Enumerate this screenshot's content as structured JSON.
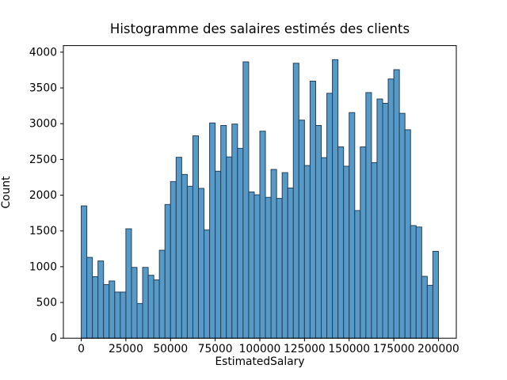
{
  "figure": {
    "background": "#ffffff"
  },
  "chart_data": {
    "type": "bar",
    "subtype": "histogram",
    "title": "Histogramme des salaires estimés des clients",
    "xlabel": "EstimatedSalary",
    "ylabel": "Count",
    "bin_start": 0,
    "bin_width": 3125,
    "bin_range": [
      0,
      200000
    ],
    "n_bins": 64,
    "values": [
      1850,
      1130,
      860,
      1080,
      750,
      800,
      645,
      645,
      1530,
      990,
      485,
      990,
      880,
      815,
      1230,
      1870,
      2190,
      2530,
      2290,
      2125,
      2830,
      2095,
      1515,
      3010,
      2335,
      2975,
      2535,
      2995,
      2655,
      3865,
      2045,
      2005,
      2895,
      1970,
      2360,
      1955,
      2315,
      2100,
      3845,
      3050,
      2415,
      3595,
      2975,
      2525,
      3425,
      3895,
      2675,
      2405,
      3155,
      1785,
      2675,
      3435,
      2455,
      3345,
      3285,
      3625,
      3755,
      3145,
      2915,
      1575,
      1555,
      865,
      740,
      1215
    ],
    "xlim": [
      -10000,
      210000
    ],
    "ylim": [
      0,
      4092
    ],
    "xticks": [
      0,
      25000,
      50000,
      75000,
      100000,
      125000,
      150000,
      175000,
      200000
    ],
    "yticks": [
      0,
      500,
      1000,
      1500,
      2000,
      2500,
      3000,
      3500,
      4000
    ],
    "grid": false,
    "legend_position": "none",
    "bar_fill": "#5799c7",
    "bar_edge": "#23405a",
    "spine_color": "#000000",
    "tick_color": "#000000"
  }
}
